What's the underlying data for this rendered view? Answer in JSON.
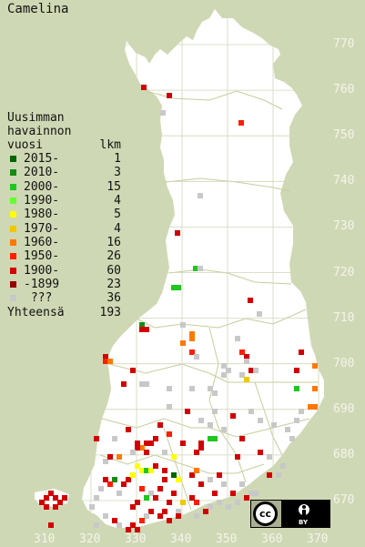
{
  "title": "Camelina",
  "legend": {
    "heading_line1": "Uusimman",
    "heading_line2": "havainnon",
    "heading_line3": "vuosi",
    "count_header": "lkm",
    "items": [
      {
        "label": "2015-",
        "count": "1",
        "color": "#006400"
      },
      {
        "label": "2010-",
        "count": "3",
        "color": "#148c14"
      },
      {
        "label": "2000-",
        "count": "15",
        "color": "#1ec81e"
      },
      {
        "label": "1990-",
        "count": "4",
        "color": "#64ff32"
      },
      {
        "label": "1980-",
        "count": "5",
        "color": "#ffff00"
      },
      {
        "label": "1970-",
        "count": "4",
        "color": "#f0c800"
      },
      {
        "label": "1960-",
        "count": "16",
        "color": "#ff7800"
      },
      {
        "label": "1950-",
        "count": "26",
        "color": "#ff1e00"
      },
      {
        "label": "1900-",
        "count": "60",
        "color": "#d20000"
      },
      {
        "label": "-1899",
        "count": "23",
        "color": "#960000"
      },
      {
        "label": " ???",
        "count": "36",
        "color": "#c8c8c8"
      }
    ],
    "total_label": "Yhteensä",
    "total_count": "193"
  },
  "y_labels": [
    "770",
    "760",
    "750",
    "740",
    "730",
    "720",
    "710",
    "700",
    "690",
    "680",
    "670"
  ],
  "x_labels": [
    "310",
    "320",
    "330",
    "340",
    "350",
    "360",
    "370"
  ],
  "colors": {
    "sea": "#cfd8b4",
    "land": "#ffffff",
    "grid": "#d2d6b8",
    "border": "#c8cc9c"
  }
}
